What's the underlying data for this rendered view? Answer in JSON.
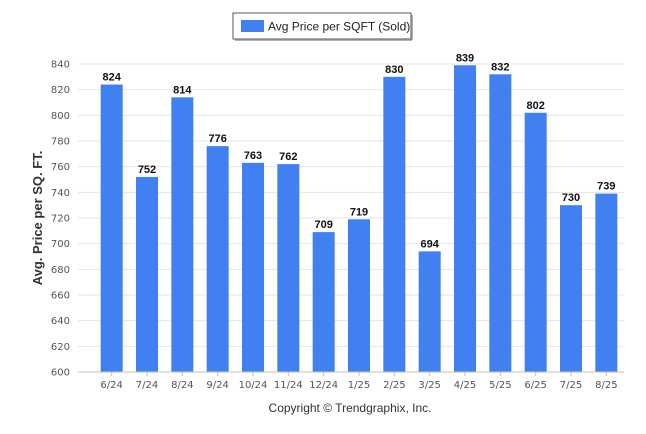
{
  "chart_data": {
    "type": "bar",
    "categories": [
      "6/24",
      "7/24",
      "8/24",
      "9/24",
      "10/24",
      "11/24",
      "12/24",
      "1/25",
      "2/25",
      "3/25",
      "4/25",
      "5/25",
      "6/25",
      "7/25",
      "8/25"
    ],
    "series": [
      {
        "name": "Avg Price per SQFT (Sold)",
        "values": [
          824,
          752,
          814,
          776,
          763,
          762,
          709,
          719,
          830,
          694,
          839,
          832,
          802,
          730,
          739
        ]
      }
    ],
    "title": "",
    "xlabel": "",
    "ylabel": "Avg. Price per SQ. FT.",
    "ylim": [
      600,
      840
    ],
    "yticks": [
      600,
      620,
      640,
      660,
      680,
      700,
      720,
      740,
      760,
      780,
      800,
      820,
      840
    ],
    "grid": true,
    "legend": "top-center",
    "bar_color": "#4080f0"
  },
  "footer": {
    "copyright": "Copyright © Trendgraphix, Inc."
  }
}
